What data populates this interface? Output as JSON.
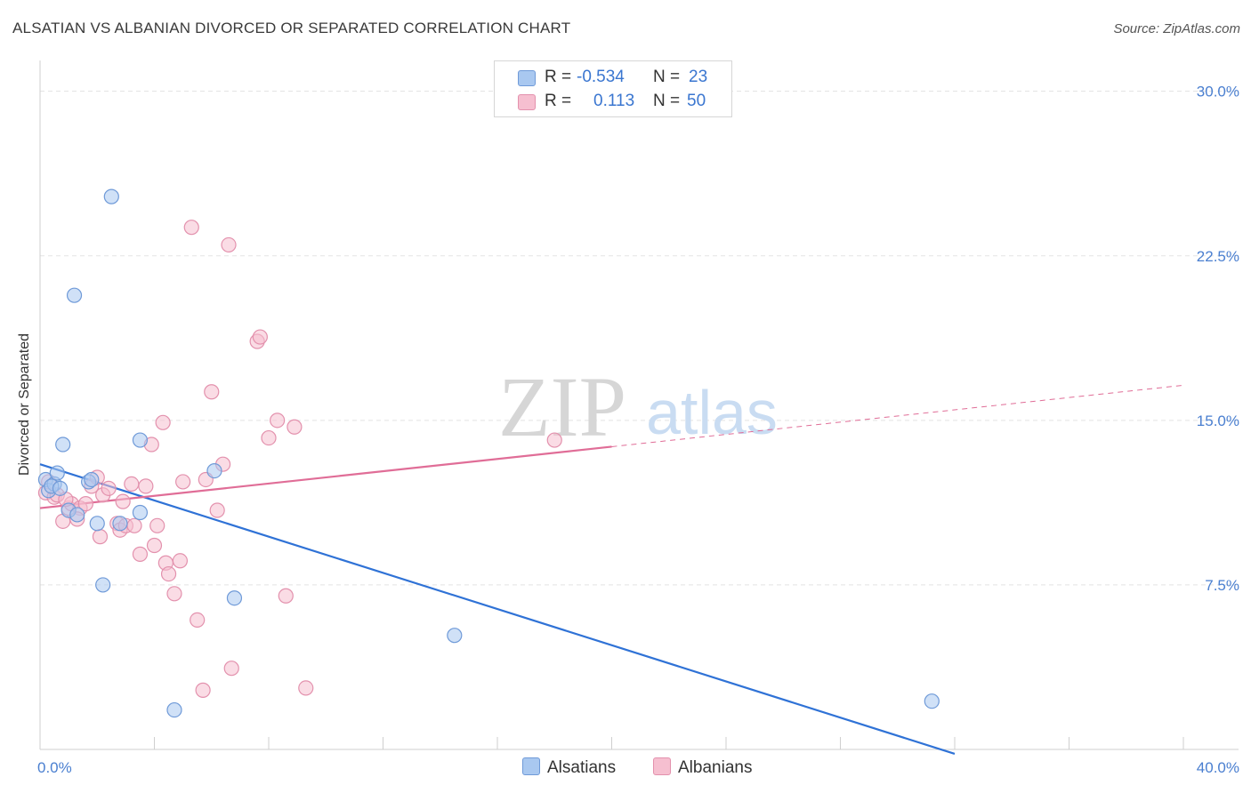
{
  "title": "ALSATIAN VS ALBANIAN DIVORCED OR SEPARATED CORRELATION CHART",
  "source": "Source: ZipAtlas.com",
  "watermark": {
    "zip": "ZIP",
    "atlas": "atlas"
  },
  "legend": {
    "rows": [
      {
        "r_label": "R =",
        "r_value": "-0.534",
        "n_label": "N =",
        "n_value": "23"
      },
      {
        "r_label": "R =",
        "r_value": "0.113",
        "n_label": "N =",
        "n_value": "50"
      }
    ]
  },
  "bottom_legend": {
    "alsatians": "Alsatians",
    "albanians": "Albanians"
  },
  "colors": {
    "alsatian_fill": "#a9c8f0",
    "alsatian_stroke": "#6f9ad8",
    "alsatian_line": "#2f72d6",
    "albanian_fill": "#f6bfd0",
    "albanian_stroke": "#e391ad",
    "albanian_line": "#e06d97",
    "tick_text": "#4a7fd0",
    "grid": "#e3e3e3"
  },
  "chart_data": {
    "type": "scatter",
    "title": "ALSATIAN VS ALBANIAN DIVORCED OR SEPARATED CORRELATION CHART",
    "xlabel": "",
    "ylabel": "Divorced or Separated",
    "xlim": [
      0,
      40
    ],
    "ylim": [
      0,
      31
    ],
    "x_tick_labels": [
      "0.0%",
      "40.0%"
    ],
    "y_ticks": [
      7.5,
      15.0,
      22.5,
      30.0
    ],
    "y_tick_labels": [
      "7.5%",
      "15.0%",
      "22.5%",
      "30.0%"
    ],
    "grid": true,
    "series": [
      {
        "name": "Alsatians",
        "points": [
          [
            0.2,
            12.3
          ],
          [
            0.3,
            11.8
          ],
          [
            0.5,
            12.1
          ],
          [
            0.6,
            12.6
          ],
          [
            0.8,
            13.9
          ],
          [
            1.2,
            20.7
          ],
          [
            1.7,
            12.2
          ],
          [
            1.8,
            12.3
          ],
          [
            2.5,
            25.2
          ],
          [
            1.0,
            10.9
          ],
          [
            1.3,
            10.7
          ],
          [
            2.0,
            10.3
          ],
          [
            2.2,
            7.5
          ],
          [
            2.8,
            10.3
          ],
          [
            3.5,
            10.8
          ],
          [
            3.5,
            14.1
          ],
          [
            4.7,
            1.8
          ],
          [
            6.1,
            12.7
          ],
          [
            6.8,
            6.9
          ],
          [
            14.5,
            5.2
          ],
          [
            31.2,
            2.2
          ],
          [
            0.4,
            12.0
          ],
          [
            0.7,
            11.9
          ]
        ]
      },
      {
        "name": "Albanians",
        "points": [
          [
            0.2,
            11.7
          ],
          [
            0.3,
            12.2
          ],
          [
            0.5,
            11.5
          ],
          [
            0.6,
            11.6
          ],
          [
            0.8,
            10.4
          ],
          [
            1.0,
            11.0
          ],
          [
            1.1,
            11.2
          ],
          [
            1.4,
            11.0
          ],
          [
            1.6,
            11.2
          ],
          [
            1.8,
            12.0
          ],
          [
            2.0,
            12.4
          ],
          [
            2.1,
            9.7
          ],
          [
            2.2,
            11.6
          ],
          [
            2.4,
            11.9
          ],
          [
            2.7,
            10.3
          ],
          [
            2.8,
            10.0
          ],
          [
            2.9,
            11.3
          ],
          [
            3.0,
            10.2
          ],
          [
            3.2,
            12.1
          ],
          [
            3.3,
            10.2
          ],
          [
            3.5,
            8.9
          ],
          [
            3.7,
            12.0
          ],
          [
            3.9,
            13.9
          ],
          [
            4.0,
            9.3
          ],
          [
            4.1,
            10.2
          ],
          [
            4.3,
            14.9
          ],
          [
            4.4,
            8.5
          ],
          [
            4.5,
            8.0
          ],
          [
            4.7,
            7.1
          ],
          [
            4.9,
            8.6
          ],
          [
            5.0,
            12.2
          ],
          [
            5.3,
            23.8
          ],
          [
            5.5,
            5.9
          ],
          [
            5.7,
            2.7
          ],
          [
            5.8,
            12.3
          ],
          [
            6.0,
            16.3
          ],
          [
            6.2,
            10.9
          ],
          [
            6.4,
            13.0
          ],
          [
            6.6,
            23.0
          ],
          [
            6.7,
            3.7
          ],
          [
            7.6,
            18.6
          ],
          [
            7.7,
            18.8
          ],
          [
            8.0,
            14.2
          ],
          [
            8.3,
            15.0
          ],
          [
            8.6,
            7.0
          ],
          [
            8.9,
            14.7
          ],
          [
            9.3,
            2.8
          ],
          [
            18.0,
            14.1
          ],
          [
            1.3,
            10.5
          ],
          [
            0.9,
            11.4
          ]
        ]
      }
    ],
    "trend_lines": [
      {
        "series": "Alsatians",
        "x": [
          0,
          32
        ],
        "y": [
          13.0,
          -0.2
        ],
        "style": "solid"
      },
      {
        "series": "Albanians",
        "x": [
          0,
          20
        ],
        "y": [
          11.0,
          13.8
        ],
        "style": "solid"
      },
      {
        "series": "Albanians",
        "x": [
          20,
          40
        ],
        "y": [
          13.8,
          16.6
        ],
        "style": "dashed"
      }
    ]
  }
}
